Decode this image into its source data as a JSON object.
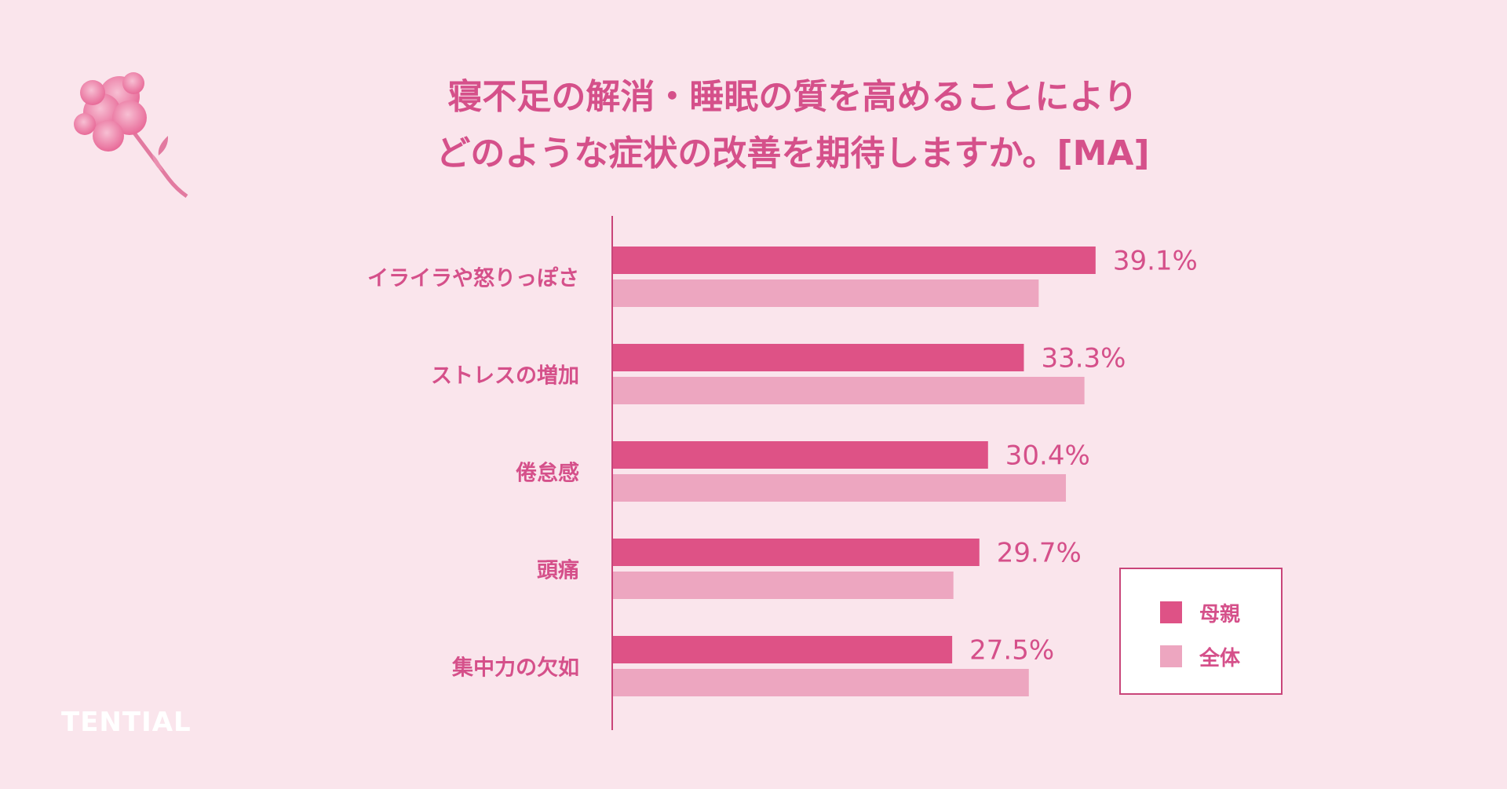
{
  "title_lines": [
    "寝不足の解消・睡眠の質を高めることにより",
    "どのような症状の改善を期待しますか。[MA]"
  ],
  "brand": "TENTIAL",
  "colors": {
    "mother": "#de5286",
    "overall": "#eda6c0",
    "text": "#d5508a",
    "axis": "#c9457a",
    "background": "#fae5ec"
  },
  "legend": [
    {
      "label": "母親",
      "color": "#de5286"
    },
    {
      "label": "全体",
      "color": "#eda6c0"
    }
  ],
  "chart_data": {
    "type": "bar",
    "orientation": "horizontal",
    "categories": [
      "イライラや怒りっぽさ",
      "ストレスの増加",
      "倦怠感",
      "頭痛",
      "集中力の欠如"
    ],
    "series": [
      {
        "name": "母親",
        "values": [
          39.1,
          33.3,
          30.4,
          29.7,
          27.5
        ],
        "value_labels": [
          "39.1%",
          "33.3%",
          "30.4%",
          "29.7%",
          "27.5%"
        ]
      },
      {
        "name": "全体",
        "values": [
          34.5,
          38.2,
          36.7,
          27.6,
          33.7
        ]
      }
    ],
    "xlim": [
      0,
      50
    ],
    "grid": false,
    "legend_position": "bottom-right"
  }
}
